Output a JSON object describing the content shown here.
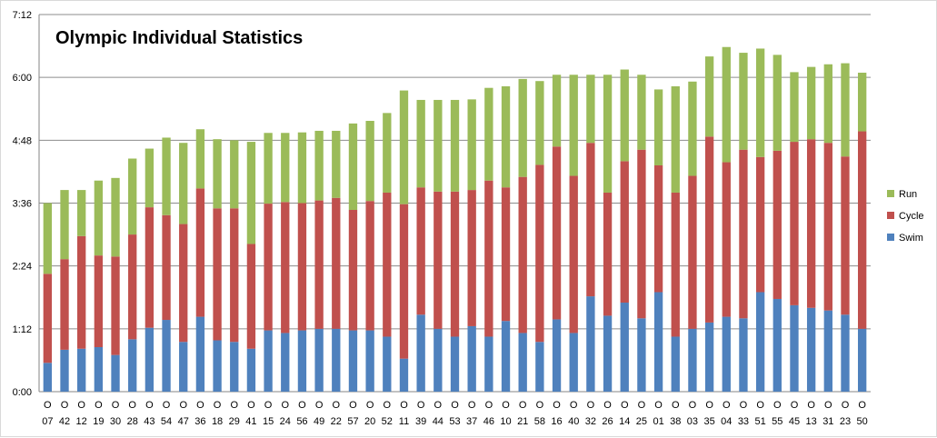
{
  "chart_data": {
    "type": "bar",
    "stacked": true,
    "title": "Olympic Individual Statistics",
    "xlabel": "",
    "ylabel": "",
    "y_ticks": [
      "0:00",
      "1:12",
      "2:24",
      "3:36",
      "4:48",
      "6:00",
      "7:12"
    ],
    "ylim_hours": [
      0,
      7.2
    ],
    "grid": true,
    "legend_position": "right",
    "x_prefix": "O",
    "categories": [
      "07",
      "42",
      "12",
      "19",
      "30",
      "28",
      "43",
      "54",
      "47",
      "36",
      "18",
      "29",
      "41",
      "15",
      "24",
      "56",
      "49",
      "22",
      "57",
      "20",
      "52",
      "11",
      "39",
      "44",
      "53",
      "37",
      "46",
      "10",
      "21",
      "58",
      "16",
      "40",
      "32",
      "26",
      "14",
      "25",
      "01",
      "38",
      "03",
      "35",
      "04",
      "33",
      "51",
      "55",
      "45",
      "13",
      "31",
      "23",
      "50"
    ],
    "series": [
      {
        "name": "Swim",
        "color": "#4f81bd",
        "unit": "hours",
        "values": [
          0.55,
          0.8,
          0.82,
          0.85,
          0.7,
          1.0,
          1.22,
          1.37,
          0.95,
          1.43,
          0.98,
          0.95,
          0.82,
          1.17,
          1.12,
          1.17,
          1.2,
          1.2,
          1.17,
          1.17,
          1.05,
          0.63,
          1.47,
          1.2,
          1.05,
          1.25,
          1.05,
          1.35,
          1.12,
          0.95,
          1.38,
          1.12,
          1.82,
          1.45,
          1.7,
          1.4,
          1.9,
          1.05,
          1.2,
          1.32,
          1.43,
          1.4,
          1.9,
          1.77,
          1.65,
          1.6,
          1.55,
          1.47,
          1.2
        ]
      },
      {
        "name": "Cycle",
        "color": "#c0504d",
        "unit": "hours",
        "values": [
          1.7,
          1.73,
          2.15,
          1.75,
          1.88,
          2.0,
          2.3,
          2.0,
          2.25,
          2.45,
          2.52,
          2.55,
          2.0,
          2.42,
          2.5,
          2.43,
          2.45,
          2.5,
          2.3,
          2.47,
          2.75,
          2.95,
          2.43,
          2.62,
          2.77,
          2.6,
          2.98,
          2.55,
          2.98,
          3.38,
          3.3,
          3.0,
          2.93,
          2.35,
          2.7,
          3.22,
          2.42,
          2.75,
          2.92,
          3.55,
          2.95,
          3.22,
          2.58,
          2.83,
          3.12,
          3.22,
          3.2,
          3.02,
          3.77
        ]
      },
      {
        "name": "Run",
        "color": "#9bbb59",
        "unit": "hours",
        "values": [
          1.35,
          1.32,
          0.88,
          1.43,
          1.5,
          1.45,
          1.12,
          1.48,
          1.55,
          1.13,
          1.32,
          1.3,
          1.95,
          1.35,
          1.32,
          1.35,
          1.33,
          1.28,
          1.65,
          1.53,
          1.52,
          2.17,
          1.67,
          1.75,
          1.75,
          1.73,
          1.77,
          1.93,
          1.87,
          1.6,
          1.37,
          1.93,
          1.3,
          2.25,
          1.75,
          1.43,
          1.45,
          2.03,
          1.8,
          1.53,
          2.2,
          1.85,
          2.07,
          1.83,
          1.33,
          1.38,
          1.5,
          1.78,
          1.12
        ]
      }
    ]
  }
}
